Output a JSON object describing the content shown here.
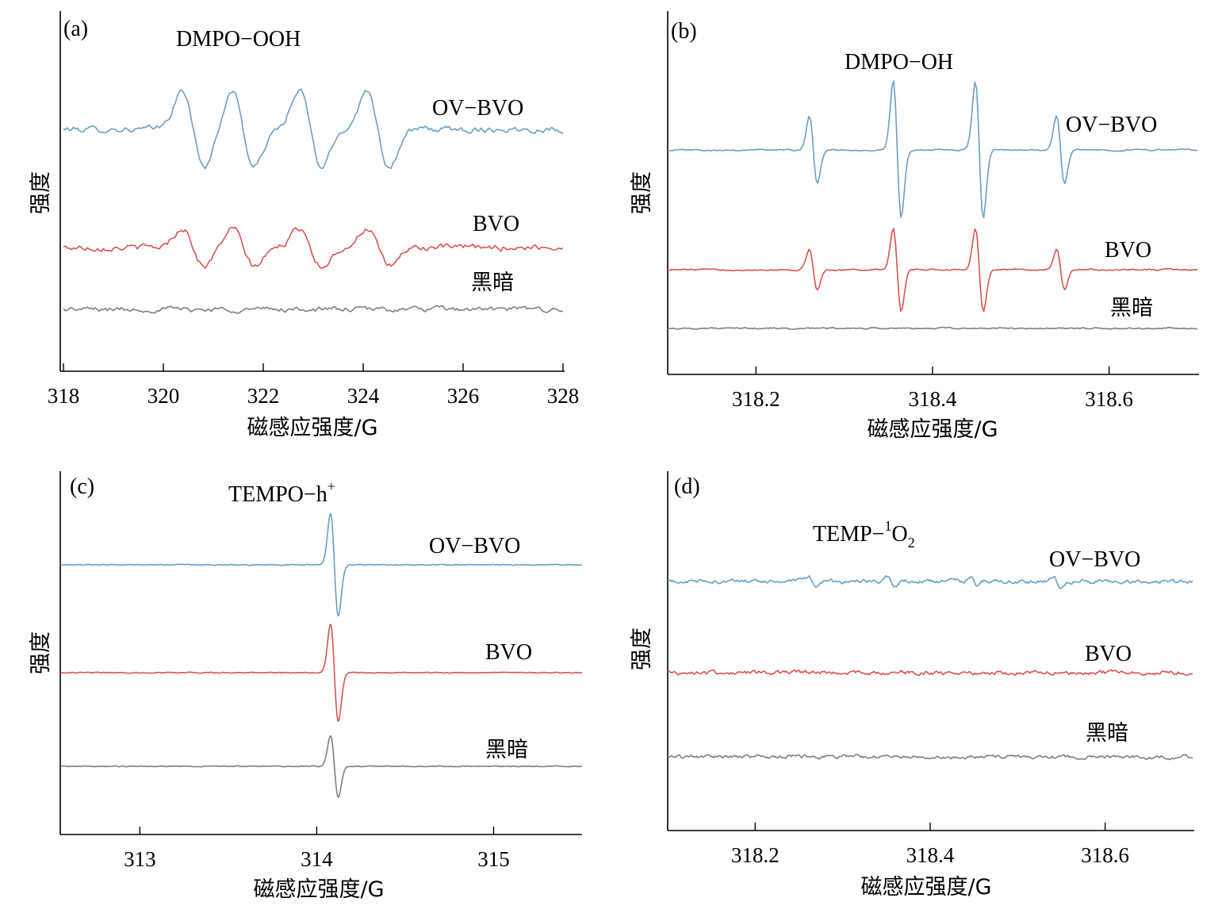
{
  "chart_data": [
    {
      "type": "line",
      "panel_label": "(a)",
      "annotation": {
        "text": "DMPO−OOH"
      },
      "xlabel": "磁感应强度/G",
      "ylabel": "强度",
      "xlim": [
        318,
        328
      ],
      "xticks": [
        "318",
        "320",
        "322",
        "324",
        "326",
        "328"
      ],
      "y_ticks_shown": false,
      "series": [
        {
          "name": "OV−BVO",
          "color": "#6a9fc5",
          "peaks": [
            320.6,
            321.6,
            322.95,
            324.3
          ],
          "amplitude": 1.0,
          "noise": 0.14,
          "baseline": 0
        },
        {
          "name": "BVO",
          "color": "#d9534f",
          "peaks": [
            320.6,
            321.6,
            322.95,
            324.3
          ],
          "amplitude": 0.5,
          "noise": 0.14,
          "baseline": 0
        },
        {
          "name": "黑暗",
          "color": "#7f7f7f",
          "peaks": [],
          "amplitude": 0,
          "noise": 0.12,
          "baseline": 0
        }
      ]
    },
    {
      "type": "line",
      "panel_label": "(b)",
      "annotation": {
        "text": "DMPO−OH"
      },
      "xlabel": "磁感应强度/G",
      "ylabel": "强度",
      "xlim": [
        318.1,
        318.7
      ],
      "xticks": [
        "318.2",
        "318.4",
        "318.6"
      ],
      "y_ticks_shown": false,
      "series": [
        {
          "name": "OV−BVO",
          "color": "#6a9fc5",
          "peaks": [
            318.265,
            318.36,
            318.453,
            318.545
          ],
          "ratios": [
            0.5,
            1.0,
            1.0,
            0.5
          ],
          "amplitude": 1.0,
          "noise": 0.02
        },
        {
          "name": "BVO",
          "color": "#d9534f",
          "peaks": [
            318.265,
            318.36,
            318.453,
            318.545
          ],
          "ratios": [
            0.5,
            1.0,
            1.0,
            0.5
          ],
          "amplitude": 0.6,
          "noise": 0.02
        },
        {
          "name": "黑暗",
          "color": "#7f7f7f",
          "peaks": [],
          "amplitude": 0,
          "noise": 0.02
        }
      ]
    },
    {
      "type": "line",
      "panel_label": "(c)",
      "annotation": {
        "text": "TEMPO−h",
        "superscript": "+"
      },
      "xlabel": "磁感应强度/G",
      "ylabel": "强度",
      "xlim": [
        312.55,
        315.5
      ],
      "xticks": [
        "313",
        "314",
        "315"
      ],
      "y_ticks_shown": false,
      "series": [
        {
          "name": "OV−BVO",
          "color": "#6a9fc5",
          "peaks": [
            314.1
          ],
          "amplitude": 1.0,
          "noise": 0.015
        },
        {
          "name": "BVO",
          "color": "#d9534f",
          "peaks": [
            314.1
          ],
          "amplitude": 0.95,
          "noise": 0.015
        },
        {
          "name": "黑暗",
          "color": "#7f7f7f",
          "peaks": [
            314.1
          ],
          "amplitude": 0.6,
          "noise": 0.015
        }
      ]
    },
    {
      "type": "line",
      "panel_label": "(d)",
      "annotation": {
        "text": "TEMP−",
        "superscript": "1",
        "body": "O",
        "subscript": "2"
      },
      "xlabel": "磁感应强度/G",
      "ylabel": "强度",
      "xlim": [
        318.1,
        318.7
      ],
      "xticks": [
        "318.2",
        "318.4",
        "318.6"
      ],
      "y_ticks_shown": false,
      "series": [
        {
          "name": "OV−BVO",
          "color": "#6a9fc5",
          "peaks": [
            318.265,
            318.355,
            318.45,
            318.545
          ],
          "amplitude": 0.12,
          "noise": 0.08
        },
        {
          "name": "BVO",
          "color": "#d9534f",
          "peaks": [],
          "amplitude": 0,
          "noise": 0.08
        },
        {
          "name": "黑暗",
          "color": "#7f7f7f",
          "peaks": [],
          "amplitude": 0,
          "noise": 0.07
        }
      ]
    }
  ]
}
